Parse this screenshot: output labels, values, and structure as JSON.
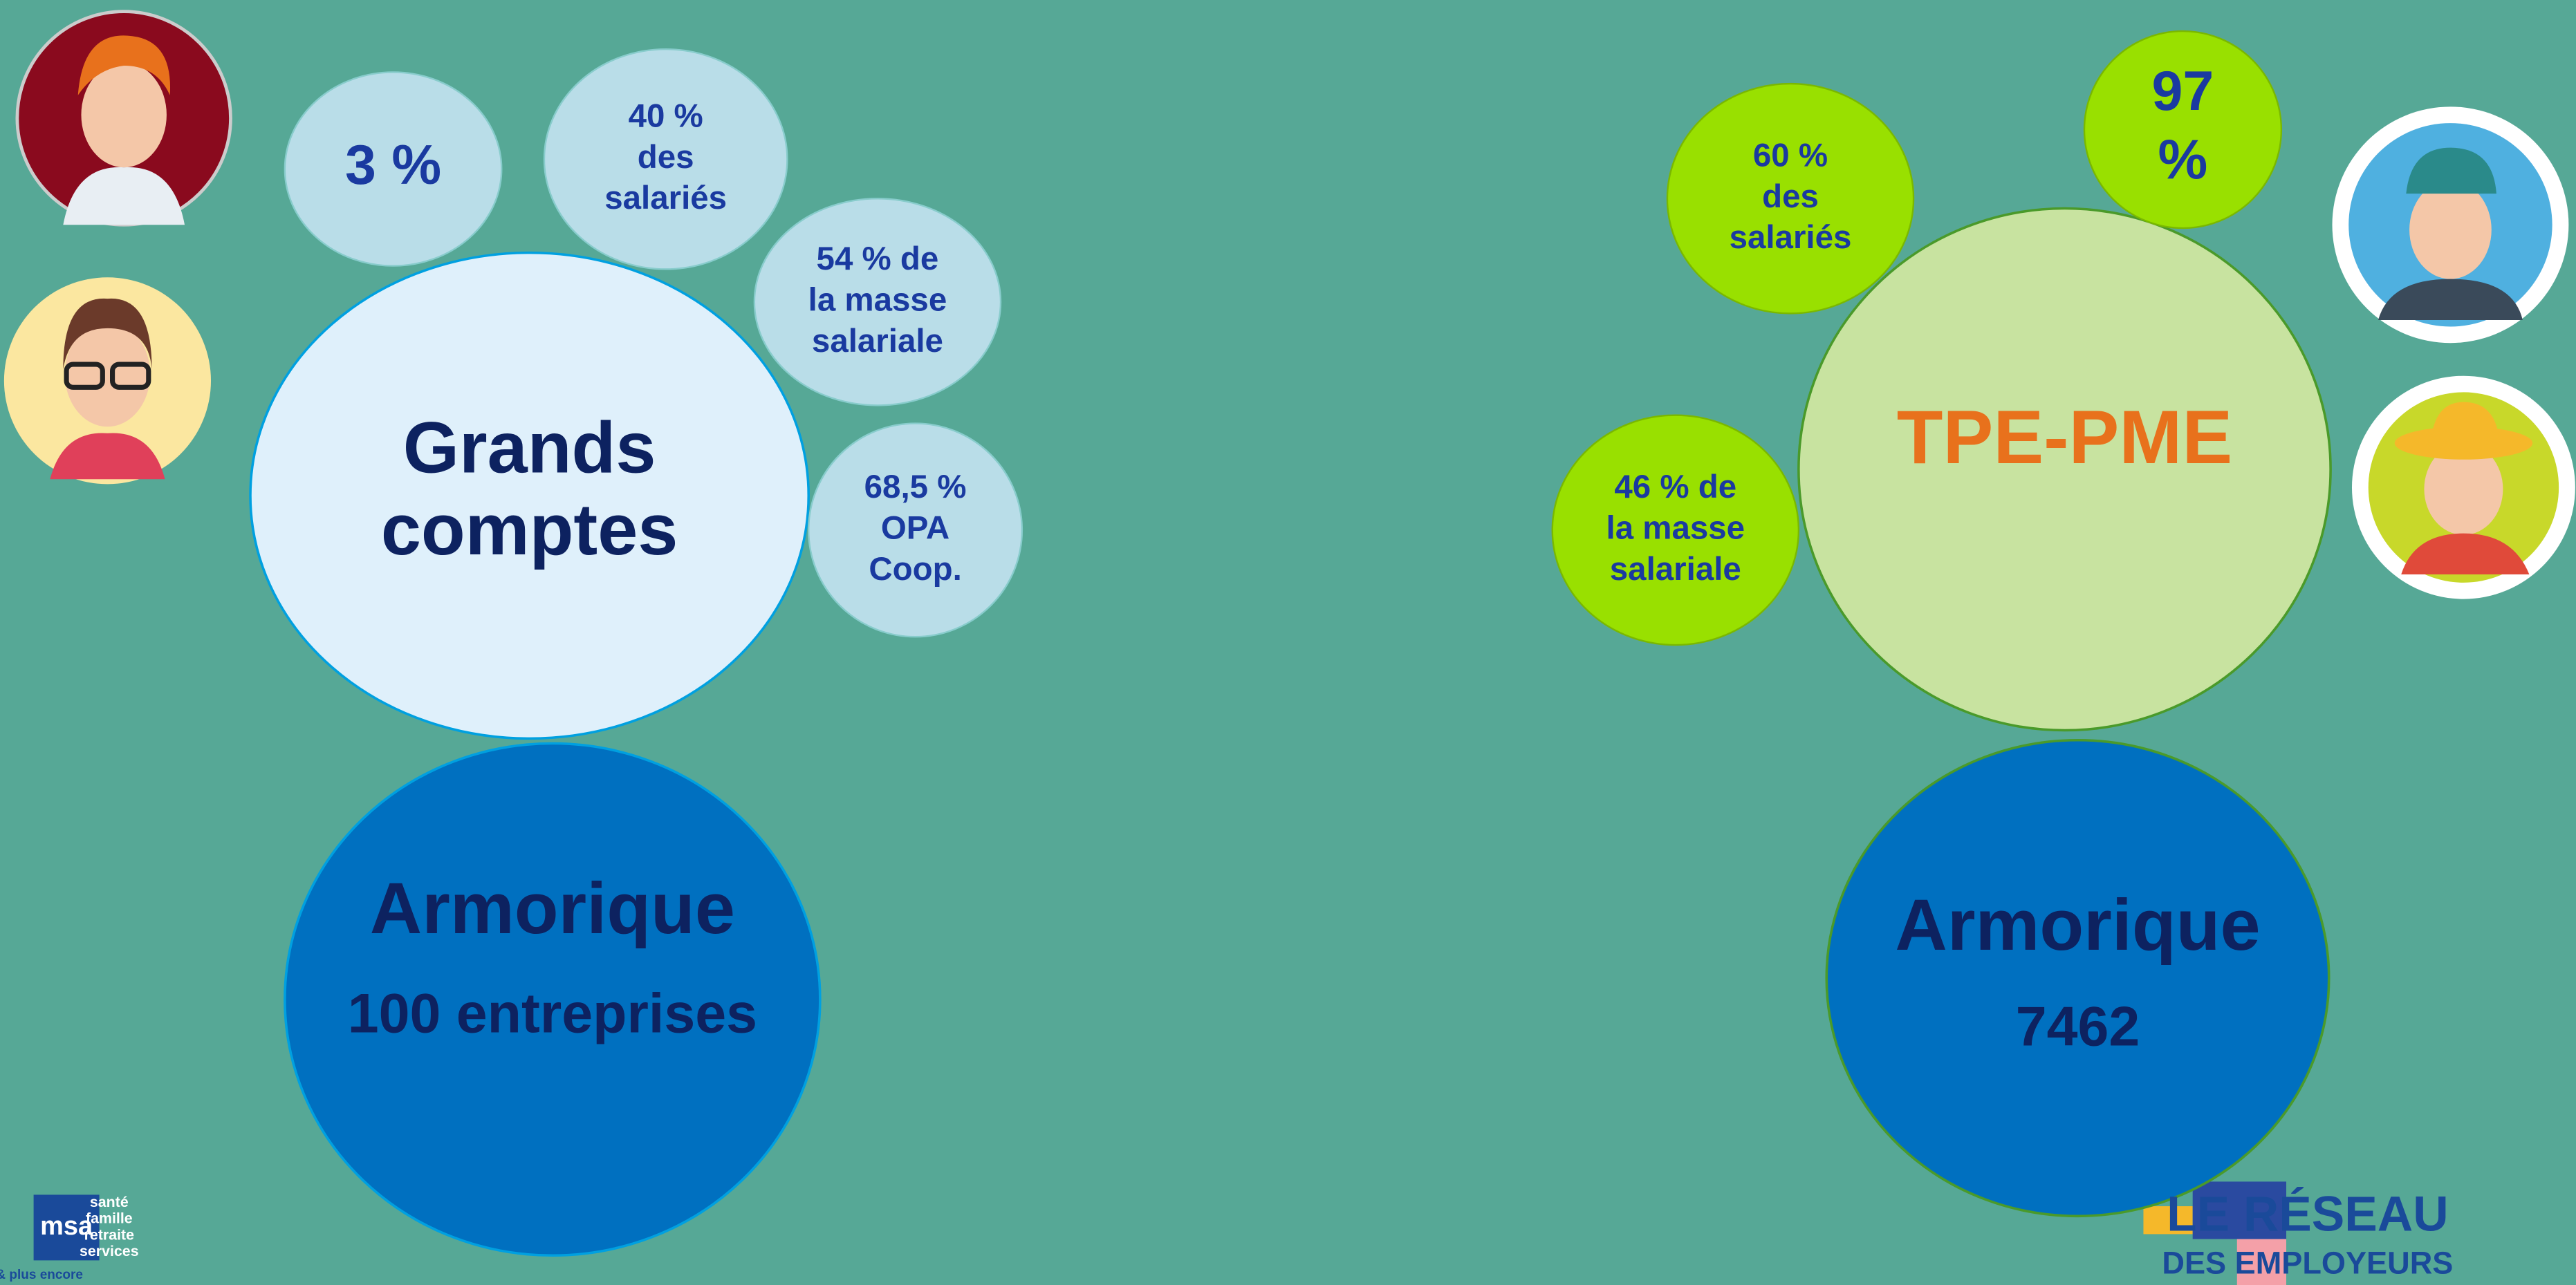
{
  "left": {
    "title": "Grands comptes",
    "bubbles": [
      {
        "lines": [
          "3 %"
        ]
      },
      {
        "lines": [
          "40 %",
          "des",
          "salariés"
        ]
      },
      {
        "lines": [
          "54 % de",
          "la masse",
          "salariale"
        ]
      },
      {
        "lines": [
          "68,5 %",
          "OPA",
          "Coop."
        ]
      }
    ],
    "base": {
      "name": "Armorique",
      "count": "100 entreprises"
    }
  },
  "right": {
    "title": "TPE-PME",
    "bubbles": [
      {
        "lines": [
          "97",
          "%"
        ]
      },
      {
        "lines": [
          "60 %",
          "des",
          "salariés"
        ]
      },
      {
        "lines": [
          "46 % de",
          "la masse",
          "salariale"
        ]
      }
    ],
    "base": {
      "name": "Armorique",
      "count": "7462"
    }
  },
  "logos": {
    "msa": {
      "mark": "msa",
      "lines": [
        "santé",
        "famille",
        "retraite",
        "services"
      ],
      "tagline": "L'essentiel & plus encore"
    },
    "reseau": {
      "lines": [
        "LE RÉSEAU",
        "DES EMPLOYEURS"
      ]
    }
  }
}
